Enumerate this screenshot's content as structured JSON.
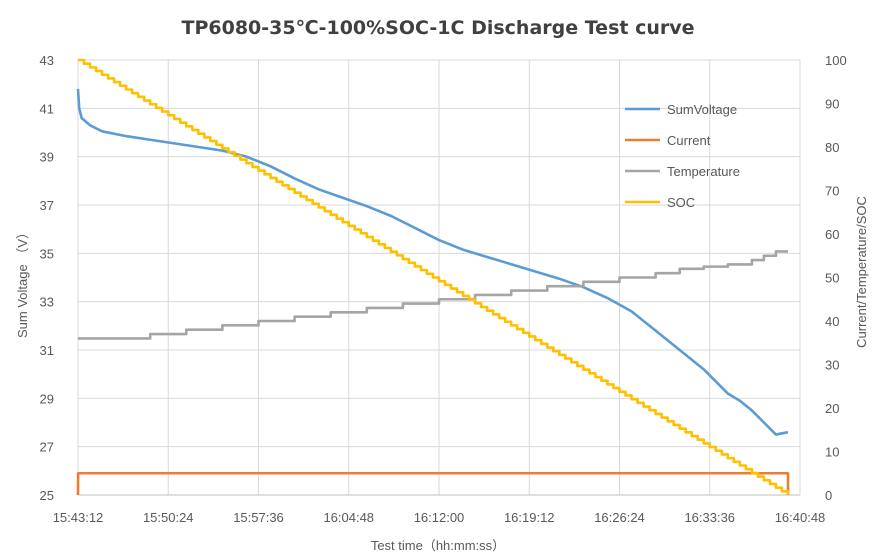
{
  "chart_data": {
    "type": "line",
    "title": "TP6080-35℃-100%SOC-1C  Discharge  Test   curve",
    "xlabel": "Test time（hh:mm:ss）",
    "ylabel_left": "Sum Voltage （V）",
    "ylabel_right": "Current/Temperature/SOC",
    "x_ticks": [
      "15:43:12",
      "15:50:24",
      "15:57:36",
      "16:04:48",
      "16:12:00",
      "16:19:12",
      "16:26:24",
      "16:33:36",
      "16:40:48"
    ],
    "x_range_minutes": [
      0,
      60
    ],
    "ylim_left": [
      25,
      43
    ],
    "yticks_left": [
      25,
      27,
      29,
      31,
      33,
      35,
      37,
      39,
      41,
      43
    ],
    "ylim_right": [
      0,
      100
    ],
    "yticks_right": [
      0,
      10,
      20,
      30,
      40,
      50,
      60,
      70,
      80,
      90,
      100
    ],
    "grid": true,
    "legend_position": "top-right",
    "series": [
      {
        "name": "SumVoltage",
        "axis": "left",
        "color": "#5b9bd5",
        "x": [
          0,
          0.1,
          0.3,
          1,
          2,
          4,
          6,
          8,
          10,
          12,
          14,
          16,
          18,
          20,
          22,
          24,
          26,
          28,
          30,
          32,
          34,
          36,
          38,
          40,
          42,
          44,
          46,
          48,
          50,
          52,
          54,
          55,
          56,
          57,
          58,
          59
        ],
        "values": [
          41.8,
          41.0,
          40.6,
          40.3,
          40.05,
          39.85,
          39.7,
          39.55,
          39.4,
          39.25,
          39.0,
          38.6,
          38.1,
          37.65,
          37.3,
          36.95,
          36.55,
          36.05,
          35.55,
          35.15,
          34.85,
          34.55,
          34.25,
          33.95,
          33.6,
          33.15,
          32.6,
          31.8,
          31.0,
          30.2,
          29.2,
          28.9,
          28.5,
          28.0,
          27.5,
          27.6
        ]
      },
      {
        "name": "Current",
        "axis": "right",
        "color": "#ed7d31",
        "x": [
          0,
          0.01,
          59,
          59.01
        ],
        "values": [
          0,
          5,
          5,
          0
        ]
      },
      {
        "name": "Temperature",
        "axis": "right",
        "color": "#a5a5a5",
        "x": [
          0,
          3,
          6,
          9,
          12,
          15,
          18,
          21,
          24,
          27,
          30,
          33,
          36,
          39,
          42,
          45,
          48,
          50,
          52,
          54,
          56,
          57,
          58,
          59
        ],
        "values": [
          36,
          36,
          37,
          38,
          39,
          40,
          41,
          42,
          43,
          44,
          45,
          46,
          47,
          48,
          49,
          50,
          51,
          52,
          52.5,
          53,
          54,
          55,
          56,
          56
        ]
      },
      {
        "name": "SOC",
        "axis": "right",
        "color": "#ffc000",
        "x": [
          0,
          59
        ],
        "values": [
          100,
          0
        ]
      }
    ]
  }
}
